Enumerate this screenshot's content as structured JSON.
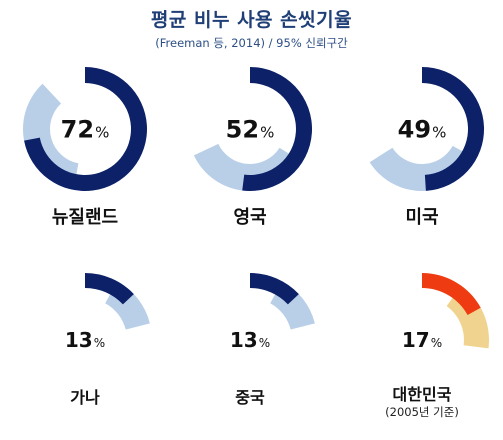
{
  "title": "평균 비누 사용 손씻기율",
  "subtitle": "(Freeman 등, 2014)  / 95% 신뢰구간",
  "chart_data": {
    "type": "radial-bar",
    "title": "평균 비누 사용 손씻기율",
    "subtitle": "(Freeman 등, 2014)  / 95% 신뢰구간",
    "percent_symbol": "%",
    "items": [
      {
        "country": "뉴질랜드",
        "value": 72,
        "value_label": "72",
        "ci": [
          53,
          88
        ],
        "bar_color": "#0c2167",
        "ci_color": "#b9cfe8"
      },
      {
        "country": "영국",
        "value": 52,
        "value_label": "52",
        "ci": [
          34,
          68
        ],
        "bar_color": "#0c2167",
        "ci_color": "#b9cfe8"
      },
      {
        "country": "미국",
        "value": 49,
        "value_label": "49",
        "ci": [
          33,
          66
        ],
        "bar_color": "#0c2167",
        "ci_color": "#b9cfe8"
      },
      {
        "country": "가나",
        "value": 13,
        "value_label": "13",
        "ci": [
          8,
          21
        ],
        "bar_color": "#0c2167",
        "ci_color": "#b9cfe8"
      },
      {
        "country": "중국",
        "value": 13,
        "value_label": "13",
        "ci": [
          8,
          21
        ],
        "bar_color": "#0c2167",
        "ci_color": "#b9cfe8"
      },
      {
        "country": "대한민국",
        "value": 17,
        "value_label": "17",
        "ci": [
          10,
          27
        ],
        "bar_color": "#ef3b12",
        "ci_color": "#f0d38e",
        "note": "(2005년 기준)"
      }
    ]
  }
}
